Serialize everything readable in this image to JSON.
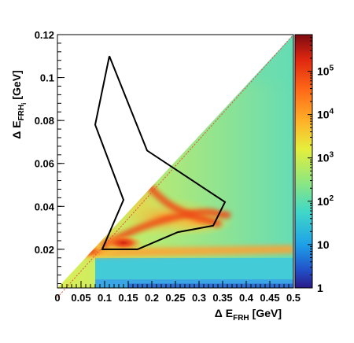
{
  "chart_data": {
    "type": "heatmap",
    "title": "",
    "xlabel": "Δ E",
    "xlabel_sub": "FRH",
    "xlabel_unit": "[GeV]",
    "ylabel": "Δ E",
    "ylabel_sub": "FRH",
    "ylabel_subsub": "i",
    "ylabel_unit": "[GeV]",
    "xlim": [
      0,
      0.5
    ],
    "ylim": [
      0.002,
      0.12
    ],
    "x_ticks": [
      "0",
      "0.05",
      "0.1",
      "0.15",
      "0.2",
      "0.25",
      "0.3",
      "0.35",
      "0.4",
      "0.45",
      "0.5"
    ],
    "y_ticks": [
      "0.02",
      "0.04",
      "0.06",
      "0.08",
      "0.1",
      "0.12"
    ],
    "colorbar": {
      "scale": "log",
      "range": [
        1,
        700000
      ],
      "tick_labels": [
        {
          "base": "1",
          "exp": ""
        },
        {
          "base": "10",
          "exp": ""
        },
        {
          "base": "10",
          "exp": "2"
        },
        {
          "base": "10",
          "exp": "3"
        },
        {
          "base": "10",
          "exp": "4"
        },
        {
          "base": "10",
          "exp": "5"
        }
      ]
    },
    "populated_boundary_slope": 0.24,
    "selection_polygon": [
      [
        0.11,
        0.11
      ],
      [
        0.19,
        0.066
      ],
      [
        0.355,
        0.042
      ],
      [
        0.33,
        0.031
      ],
      [
        0.255,
        0.028
      ],
      [
        0.17,
        0.02
      ],
      [
        0.095,
        0.02
      ],
      [
        0.14,
        0.043
      ],
      [
        0.08,
        0.078
      ],
      [
        0.11,
        0.11
      ]
    ]
  }
}
